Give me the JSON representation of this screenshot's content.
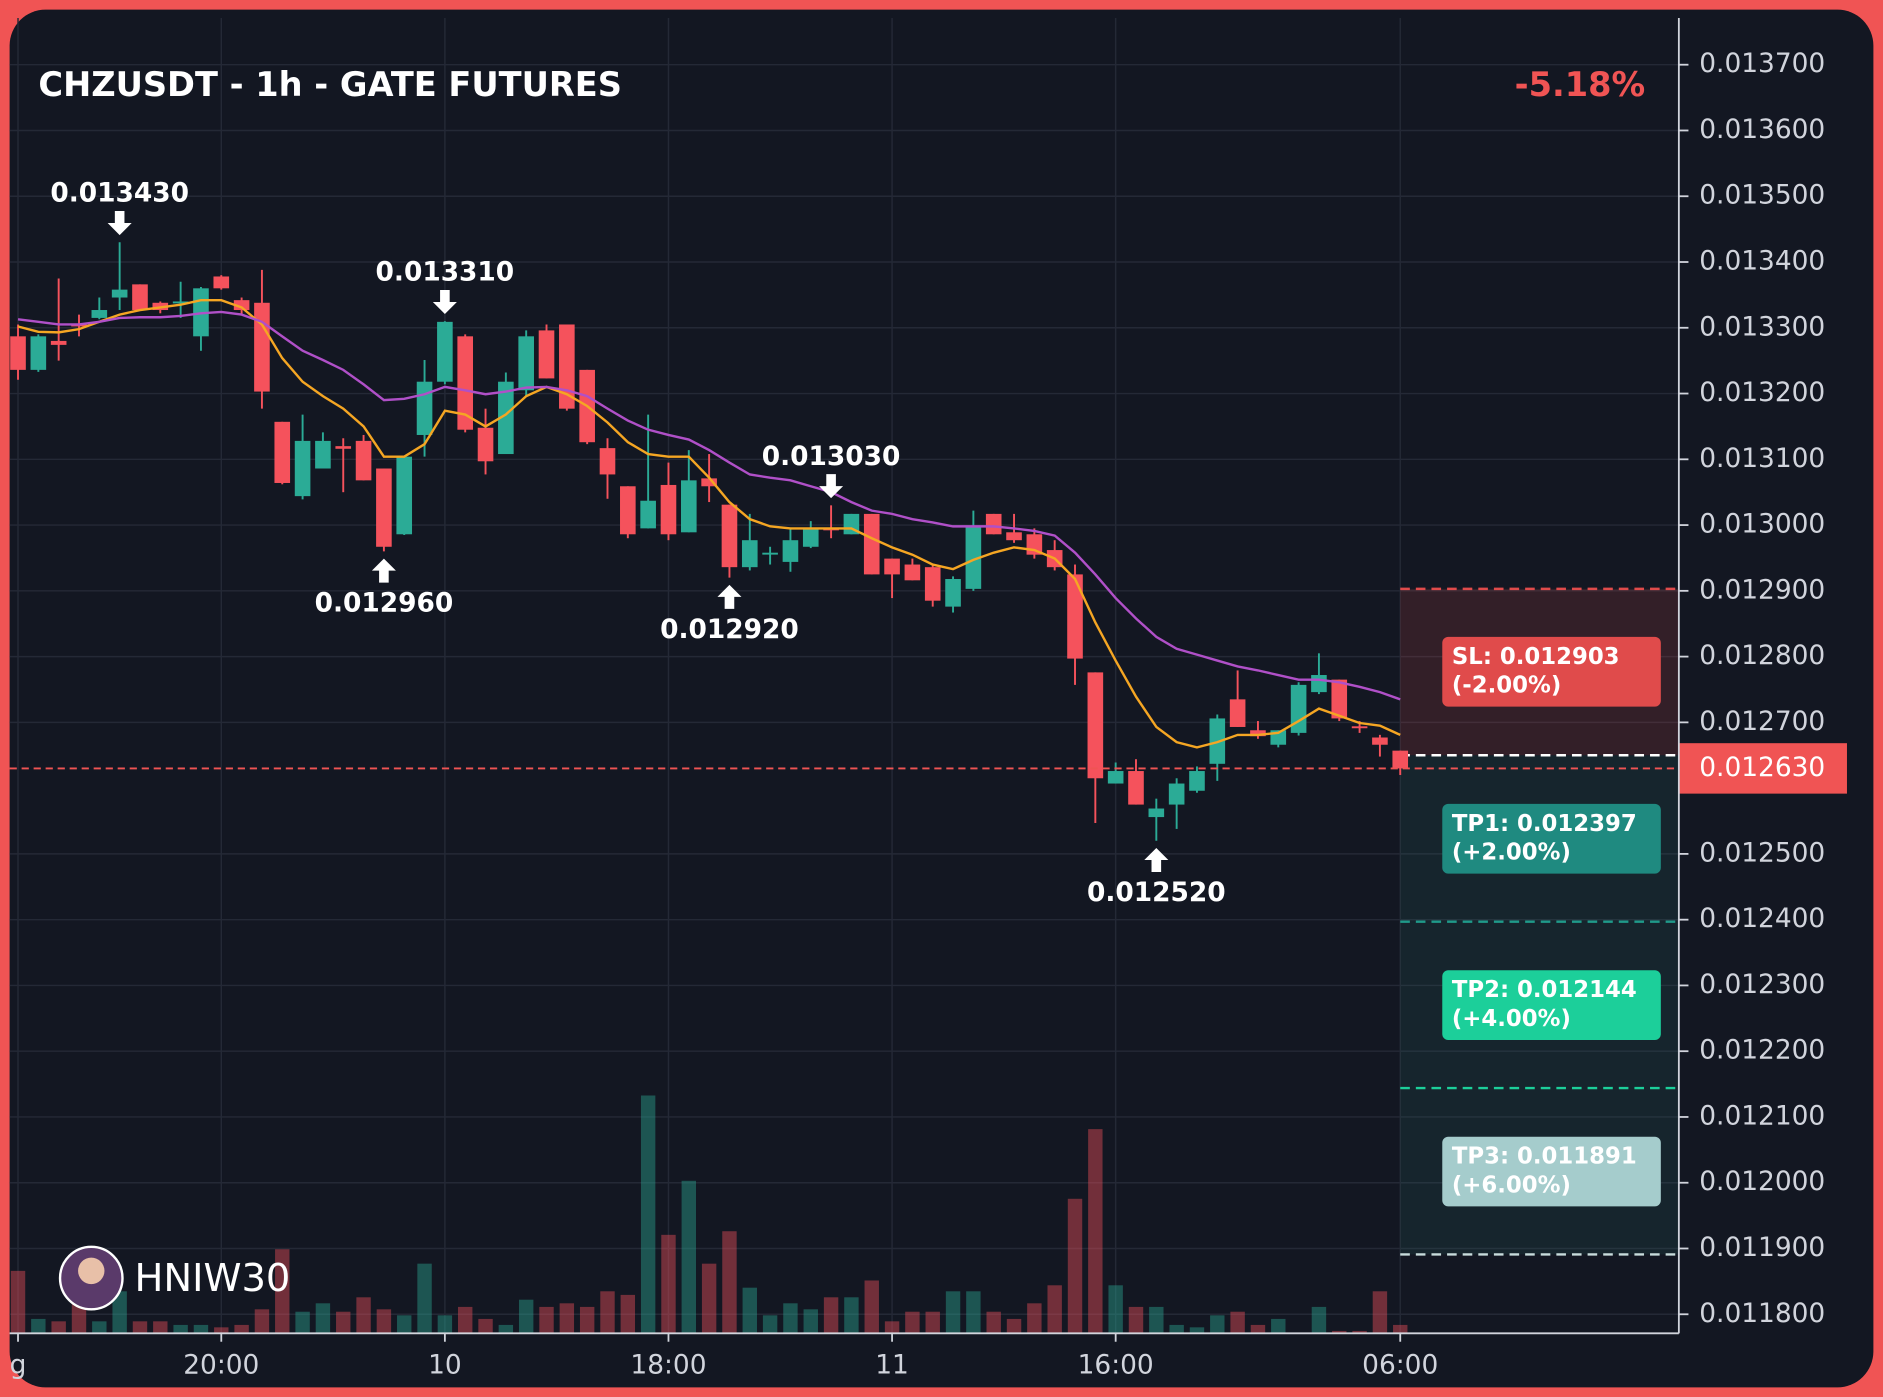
{
  "chart_data": {
    "type": "candlestick",
    "title": "CHZUSDT - 1h - GATE FUTURES",
    "change": "-5.18%",
    "watermark": "HNIW30",
    "categories": [
      "g",
      null,
      null,
      null,
      null,
      null,
      null,
      null,
      null,
      null,
      "20:00",
      null,
      null,
      null,
      null,
      null,
      null,
      null,
      null,
      null,
      null,
      "10",
      null,
      null,
      null,
      null,
      null,
      null,
      null,
      null,
      null,
      null,
      "18:00",
      null,
      null,
      null,
      null,
      null,
      null,
      null,
      null,
      null,
      null,
      "11",
      null,
      null,
      null,
      null,
      null,
      null,
      null,
      null,
      null,
      null,
      "16:00",
      null,
      null,
      null,
      null,
      null,
      null,
      null,
      null,
      null,
      null,
      null,
      null,
      null,
      "06:00"
    ],
    "open": [
      0.013287,
      0.013236,
      0.01328,
      0.013305,
      0.013315,
      0.013346,
      0.013366,
      0.013338,
      0.013338,
      0.013287,
      0.013378,
      0.013342,
      0.013338,
      0.013157,
      0.013044,
      0.013086,
      0.01312,
      0.013128,
      0.013086,
      0.012986,
      0.013137,
      0.013218,
      0.013287,
      0.013148,
      0.013108,
      0.013205,
      0.013296,
      0.013305,
      0.013236,
      0.013117,
      0.013059,
      0.012995,
      0.013061,
      0.012989,
      0.013071,
      0.013031,
      0.012936,
      0.012956,
      0.012944,
      0.012967,
      0.012995,
      0.012986,
      0.013017,
      0.012949,
      0.01294,
      0.012936,
      0.012876,
      0.012903,
      0.013017,
      0.012989,
      0.012986,
      0.012962,
      0.012925,
      0.012776,
      0.012607,
      0.012626,
      0.012556,
      0.012575,
      0.012596,
      0.012637,
      0.012735,
      0.012688,
      0.012666,
      0.012684,
      0.012746,
      0.012765,
      0.012694,
      0.012677,
      0.012657
    ],
    "high": [
      0.013305,
      0.01329,
      0.013375,
      0.01332,
      0.013346,
      0.01343,
      0.013366,
      0.01334,
      0.01337,
      0.013362,
      0.01338,
      0.013346,
      0.013388,
      0.013157,
      0.013168,
      0.013141,
      0.013132,
      0.013137,
      0.013086,
      0.013105,
      0.013251,
      0.01331,
      0.01329,
      0.013177,
      0.013232,
      0.013296,
      0.013305,
      0.013305,
      0.013236,
      0.013132,
      0.013059,
      0.013168,
      0.013095,
      0.013114,
      0.013108,
      0.013031,
      0.013017,
      0.012967,
      0.012995,
      0.013006,
      0.01303,
      0.013017,
      0.013017,
      0.012949,
      0.012949,
      0.01294,
      0.012922,
      0.013022,
      0.013017,
      0.013017,
      0.012995,
      0.012977,
      0.01294,
      0.012776,
      0.012639,
      0.012644,
      0.012584,
      0.012615,
      0.012633,
      0.012712,
      0.012779,
      0.012702,
      0.012688,
      0.012761,
      0.012805,
      0.012765,
      0.012702,
      0.012681,
      0.012657
    ],
    "low": [
      0.013221,
      0.013233,
      0.01325,
      0.013287,
      0.013313,
      0.013327,
      0.013327,
      0.013322,
      0.013315,
      0.013265,
      0.013358,
      0.01332,
      0.013177,
      0.013062,
      0.013039,
      0.013086,
      0.01305,
      0.013068,
      0.01296,
      0.012985,
      0.013104,
      0.013214,
      0.013141,
      0.013077,
      0.013108,
      0.013196,
      0.013223,
      0.013174,
      0.013123,
      0.01304,
      0.01298,
      0.012995,
      0.012977,
      0.012989,
      0.013035,
      0.01292,
      0.012931,
      0.01294,
      0.012929,
      0.012965,
      0.01298,
      0.012986,
      0.012925,
      0.012889,
      0.012916,
      0.012876,
      0.012867,
      0.0129,
      0.012986,
      0.012973,
      0.012949,
      0.012931,
      0.012757,
      0.012547,
      0.012607,
      0.012575,
      0.01252,
      0.012538,
      0.012593,
      0.012611,
      0.012693,
      0.012675,
      0.012662,
      0.01268,
      0.012743,
      0.012702,
      0.012684,
      0.012648,
      0.01262
    ],
    "close": [
      0.013236,
      0.013287,
      0.013274,
      0.013303,
      0.013327,
      0.013358,
      0.013327,
      0.013327,
      0.01334,
      0.01336,
      0.01336,
      0.013327,
      0.013203,
      0.013064,
      0.013128,
      0.013128,
      0.013116,
      0.013068,
      0.012967,
      0.013104,
      0.013218,
      0.013309,
      0.013145,
      0.013097,
      0.013218,
      0.013287,
      0.013223,
      0.013177,
      0.013126,
      0.013077,
      0.012986,
      0.013037,
      0.012986,
      0.013068,
      0.013059,
      0.012936,
      0.012977,
      0.012958,
      0.012977,
      0.012995,
      0.012992,
      0.013017,
      0.012925,
      0.012925,
      0.012916,
      0.012885,
      0.012918,
      0.012998,
      0.012986,
      0.012977,
      0.012955,
      0.012936,
      0.012797,
      0.012615,
      0.012626,
      0.012575,
      0.012569,
      0.012607,
      0.012626,
      0.012706,
      0.012693,
      0.012679,
      0.012688,
      0.012757,
      0.012772,
      0.012706,
      0.012692,
      0.012666,
      0.01263
    ],
    "volume": [
      52,
      12,
      10,
      25,
      10,
      35,
      10,
      10,
      7,
      7,
      5,
      7,
      20,
      70,
      18,
      25,
      18,
      30,
      20,
      15,
      58,
      15,
      22,
      12,
      7,
      28,
      22,
      25,
      22,
      35,
      32,
      198,
      82,
      127,
      58,
      85,
      38,
      15,
      25,
      20,
      30,
      30,
      44,
      10,
      18,
      18,
      35,
      35,
      18,
      12,
      25,
      40,
      112,
      170,
      40,
      22,
      22,
      7,
      5,
      15,
      18,
      7,
      12,
      0,
      22,
      2,
      2,
      35,
      7
    ],
    "vlim": [
      0,
      200
    ],
    "up_color": "#2bab96",
    "down_color": "#f5525c",
    "series": [
      {
        "color": "#f5a623",
        "values": [
          0.013302,
          0.013294,
          0.013293,
          0.013298,
          0.013309,
          0.01332,
          0.013327,
          0.013331,
          0.013335,
          0.013342,
          0.013342,
          0.013331,
          0.013305,
          0.013254,
          0.013218,
          0.013196,
          0.013177,
          0.01315,
          0.013104,
          0.013104,
          0.013123,
          0.013174,
          0.013168,
          0.01315,
          0.013168,
          0.013196,
          0.01321,
          0.013199,
          0.013181,
          0.013156,
          0.013126,
          0.013108,
          0.013104,
          0.013104,
          0.013072,
          0.013035,
          0.013009,
          0.012998,
          0.012995,
          0.012995,
          0.012995,
          0.012995,
          0.01298,
          0.012966,
          0.012955,
          0.01294,
          0.012933,
          0.012947,
          0.012958,
          0.012966,
          0.012962,
          0.012949,
          0.012918,
          0.012852,
          0.012794,
          0.012739,
          0.012693,
          0.01267,
          0.012662,
          0.01267,
          0.012681,
          0.012681,
          0.012684,
          0.012702,
          0.012721,
          0.01271,
          0.012699,
          0.012695,
          0.012681
        ]
      },
      {
        "color": "#b050c8",
        "values": [
          0.013313,
          0.013309,
          0.013305,
          0.013305,
          0.013309,
          0.013315,
          0.013316,
          0.013316,
          0.013318,
          0.013322,
          0.013324,
          0.01332,
          0.013309,
          0.013287,
          0.013265,
          0.013251,
          0.013236,
          0.013214,
          0.01319,
          0.013192,
          0.013199,
          0.01321,
          0.013205,
          0.013199,
          0.013203,
          0.013209,
          0.01321,
          0.013205,
          0.013196,
          0.013177,
          0.013159,
          0.013145,
          0.013137,
          0.01313,
          0.013114,
          0.013095,
          0.013077,
          0.013072,
          0.013068,
          0.013059,
          0.01305,
          0.013035,
          0.013022,
          0.013017,
          0.013009,
          0.013004,
          0.012998,
          0.012998,
          0.012998,
          0.012995,
          0.012991,
          0.012984,
          0.012958,
          0.012925,
          0.012889,
          0.012858,
          0.01283,
          0.012812,
          0.012803,
          0.012794,
          0.012785,
          0.012779,
          0.012772,
          0.012765,
          0.012765,
          0.012761,
          0.012754,
          0.012746,
          0.012735
        ]
      }
    ],
    "annotations": [
      {
        "label": "0.013430",
        "candle": 5,
        "side": "high"
      },
      {
        "label": "0.013310",
        "candle": 21,
        "side": "high"
      },
      {
        "label": "0.012960",
        "candle": 18,
        "side": "low"
      },
      {
        "label": "0.012920",
        "candle": 35,
        "side": "low"
      },
      {
        "label": "0.013030",
        "candle": 40,
        "side": "high"
      },
      {
        "label": "0.012520",
        "candle": 56,
        "side": "low"
      }
    ],
    "entry": 0.01265,
    "levels": [
      {
        "value": 0.012903,
        "label": "SL: 0.012903",
        "change": "(-2.00%)",
        "color": "#e04b4b",
        "line_color": "#e04b4b"
      },
      {
        "value": 0.012397,
        "label": "TP1: 0.012397",
        "change": "(+2.00%)",
        "color": "#1f8a80",
        "line_color": "#1f9a8a"
      },
      {
        "value": 0.012144,
        "label": "TP2: 0.012144",
        "change": "(+4.00%)",
        "color": "#1ccf9a",
        "line_color": "#1ccf9a"
      },
      {
        "value": 0.011891,
        "label": "TP3: 0.011891",
        "change": "(+6.00%)",
        "color": "#a5cccc",
        "line_color": "#c8dcdc"
      }
    ],
    "price": 0.01263,
    "price_label": "0.012630",
    "ylim": [
      0.011771,
      0.013771
    ],
    "yticks": [
      {
        "value": 0.0137,
        "label": "0.013700"
      },
      {
        "value": 0.0136,
        "label": "0.013600"
      },
      {
        "value": 0.0135,
        "label": "0.013500"
      },
      {
        "value": 0.0134,
        "label": "0.013400"
      },
      {
        "value": 0.0133,
        "label": "0.013300"
      },
      {
        "value": 0.0132,
        "label": "0.013200"
      },
      {
        "value": 0.0131,
        "label": "0.013100"
      },
      {
        "value": 0.013,
        "label": "0.013000"
      },
      {
        "value": 0.0129,
        "label": "0.012900"
      },
      {
        "value": 0.0128,
        "label": "0.012800"
      },
      {
        "value": 0.0127,
        "label": "0.012700"
      },
      {
        "value": 0.0125,
        "label": "0.012500"
      },
      {
        "value": 0.0124,
        "label": "0.012400"
      },
      {
        "value": 0.0123,
        "label": "0.012300"
      },
      {
        "value": 0.0122,
        "label": "0.012200"
      },
      {
        "value": 0.0121,
        "label": "0.012100"
      },
      {
        "value": 0.012,
        "label": "0.012000"
      },
      {
        "value": 0.0119,
        "label": "0.011900"
      },
      {
        "value": 0.0118,
        "label": "0.011800"
      }
    ],
    "grid": true
  }
}
